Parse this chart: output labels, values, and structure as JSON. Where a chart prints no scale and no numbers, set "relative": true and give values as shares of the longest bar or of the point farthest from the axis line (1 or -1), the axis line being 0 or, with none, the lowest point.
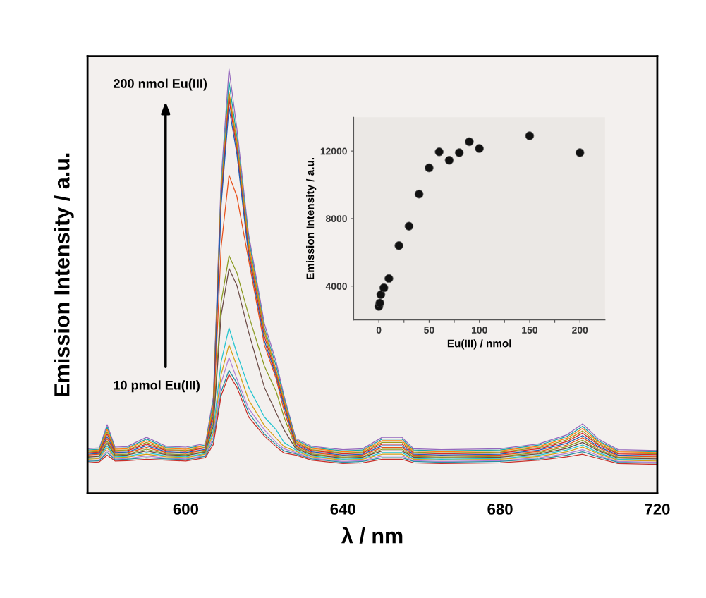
{
  "chart_data": [
    {
      "type": "line",
      "relative": true,
      "xlabel": "λ / nm",
      "ylabel": "Emission Intensity / a.u.",
      "xlim": [
        575,
        720
      ],
      "xticks": [
        600,
        640,
        680,
        720
      ],
      "tick_labels": "x",
      "marker": "none",
      "line_style": "solid",
      "grid": false,
      "legend": false,
      "annotations": [
        "200 nmol Eu(III)",
        "10 pmol Eu(III)"
      ],
      "x": [
        575,
        578,
        580,
        582,
        585,
        590,
        595,
        600,
        605,
        607,
        609,
        611,
        613,
        616,
        620,
        623,
        625,
        628,
        632,
        640,
        645,
        650,
        655,
        658,
        665,
        680,
        690,
        697,
        701,
        705,
        710,
        720
      ],
      "series": [
        {
          "color": "#9467bd",
          "values": [
            0.105,
            0.107,
            0.162,
            0.109,
            0.11,
            0.132,
            0.111,
            0.109,
            0.117,
            0.226,
            0.74,
            1.0,
            0.86,
            0.61,
            0.4,
            0.31,
            0.23,
            0.129,
            0.111,
            0.103,
            0.105,
            0.132,
            0.132,
            0.105,
            0.103,
            0.105,
            0.117,
            0.138,
            0.164,
            0.128,
            0.103,
            0.101
          ]
        },
        {
          "color": "#17a3a8",
          "values": [
            0.102,
            0.104,
            0.156,
            0.106,
            0.107,
            0.128,
            0.108,
            0.106,
            0.114,
            0.217,
            0.72,
            0.97,
            0.84,
            0.6,
            0.39,
            0.3,
            0.225,
            0.126,
            0.108,
            0.1,
            0.102,
            0.128,
            0.128,
            0.102,
            0.1,
            0.102,
            0.114,
            0.134,
            0.158,
            0.124,
            0.1,
            0.098
          ]
        },
        {
          "color": "#ff7f0e",
          "values": [
            0.1,
            0.102,
            0.151,
            0.104,
            0.105,
            0.124,
            0.106,
            0.104,
            0.112,
            0.209,
            0.71,
            0.945,
            0.83,
            0.59,
            0.385,
            0.29,
            0.22,
            0.123,
            0.106,
            0.098,
            0.1,
            0.124,
            0.124,
            0.1,
            0.098,
            0.1,
            0.111,
            0.13,
            0.153,
            0.121,
            0.098,
            0.096
          ]
        },
        {
          "color": "#9a9a1a",
          "values": [
            0.097,
            0.099,
            0.145,
            0.101,
            0.102,
            0.12,
            0.103,
            0.101,
            0.109,
            0.2,
            0.7,
            0.94,
            0.82,
            0.58,
            0.38,
            0.285,
            0.215,
            0.12,
            0.103,
            0.095,
            0.097,
            0.12,
            0.12,
            0.097,
            0.095,
            0.097,
            0.108,
            0.126,
            0.147,
            0.117,
            0.095,
            0.093
          ]
        },
        {
          "color": "#d62728",
          "values": [
            0.095,
            0.097,
            0.14,
            0.099,
            0.1,
            0.116,
            0.101,
            0.099,
            0.107,
            0.192,
            0.69,
            0.93,
            0.81,
            0.57,
            0.37,
            0.28,
            0.21,
            0.117,
            0.101,
            0.093,
            0.095,
            0.116,
            0.116,
            0.095,
            0.093,
            0.095,
            0.105,
            0.122,
            0.142,
            0.114,
            0.093,
            0.091
          ]
        },
        {
          "color": "#1f5fb4",
          "values": [
            0.092,
            0.094,
            0.134,
            0.096,
            0.097,
            0.112,
            0.098,
            0.096,
            0.104,
            0.183,
            0.68,
            0.91,
            0.8,
            0.56,
            0.36,
            0.275,
            0.205,
            0.114,
            0.098,
            0.09,
            0.092,
            0.112,
            0.112,
            0.092,
            0.09,
            0.092,
            0.102,
            0.118,
            0.136,
            0.11,
            0.09,
            0.088
          ]
        },
        {
          "color": "#e8501a",
          "values": [
            0.09,
            0.092,
            0.129,
            0.094,
            0.095,
            0.108,
            0.096,
            0.094,
            0.102,
            0.175,
            0.58,
            0.75,
            0.7,
            0.55,
            0.35,
            0.27,
            0.195,
            0.111,
            0.096,
            0.088,
            0.09,
            0.108,
            0.108,
            0.09,
            0.088,
            0.09,
            0.099,
            0.114,
            0.131,
            0.107,
            0.088,
            0.086
          ]
        },
        {
          "color": "#8a9a20",
          "values": [
            0.087,
            0.089,
            0.123,
            0.091,
            0.092,
            0.104,
            0.093,
            0.091,
            0.099,
            0.166,
            0.45,
            0.56,
            0.52,
            0.42,
            0.3,
            0.24,
            0.18,
            0.108,
            0.093,
            0.085,
            0.087,
            0.104,
            0.104,
            0.087,
            0.085,
            0.087,
            0.096,
            0.11,
            0.125,
            0.103,
            0.085,
            0.083
          ]
        },
        {
          "color": "#6b4a45",
          "values": [
            0.085,
            0.087,
            0.118,
            0.089,
            0.09,
            0.1,
            0.091,
            0.089,
            0.097,
            0.158,
            0.42,
            0.53,
            0.49,
            0.38,
            0.25,
            0.19,
            0.15,
            0.105,
            0.091,
            0.083,
            0.085,
            0.1,
            0.1,
            0.085,
            0.083,
            0.085,
            0.093,
            0.106,
            0.12,
            0.1,
            0.083,
            0.081
          ]
        },
        {
          "color": "#22c4cf",
          "values": [
            0.082,
            0.084,
            0.112,
            0.086,
            0.087,
            0.096,
            0.088,
            0.086,
            0.094,
            0.149,
            0.31,
            0.39,
            0.33,
            0.25,
            0.18,
            0.15,
            0.12,
            0.102,
            0.088,
            0.08,
            0.082,
            0.096,
            0.096,
            0.082,
            0.08,
            0.082,
            0.09,
            0.102,
            0.114,
            0.096,
            0.08,
            0.078
          ]
        },
        {
          "color": "#d4a017",
          "values": [
            0.08,
            0.082,
            0.107,
            0.084,
            0.085,
            0.092,
            0.086,
            0.084,
            0.092,
            0.141,
            0.28,
            0.35,
            0.3,
            0.22,
            0.16,
            0.13,
            0.11,
            0.099,
            0.086,
            0.078,
            0.08,
            0.092,
            0.092,
            0.08,
            0.078,
            0.08,
            0.087,
            0.098,
            0.109,
            0.093,
            0.078,
            0.076
          ]
        },
        {
          "color": "#b07fd6",
          "values": [
            0.077,
            0.079,
            0.101,
            0.081,
            0.082,
            0.088,
            0.083,
            0.081,
            0.089,
            0.132,
            0.26,
            0.32,
            0.27,
            0.2,
            0.15,
            0.12,
            0.105,
            0.096,
            0.083,
            0.075,
            0.077,
            0.088,
            0.088,
            0.077,
            0.075,
            0.077,
            0.084,
            0.094,
            0.103,
            0.089,
            0.075,
            0.073
          ]
        },
        {
          "color": "#2a8fa0",
          "values": [
            0.075,
            0.077,
            0.096,
            0.079,
            0.08,
            0.084,
            0.081,
            0.079,
            0.087,
            0.124,
            0.24,
            0.29,
            0.26,
            0.19,
            0.14,
            0.115,
            0.1,
            0.093,
            0.081,
            0.073,
            0.075,
            0.084,
            0.084,
            0.075,
            0.073,
            0.075,
            0.081,
            0.09,
            0.098,
            0.086,
            0.073,
            0.071
          ]
        },
        {
          "color": "#c8302a",
          "values": [
            0.072,
            0.074,
            0.09,
            0.076,
            0.077,
            0.08,
            0.078,
            0.076,
            0.084,
            0.115,
            0.23,
            0.28,
            0.25,
            0.18,
            0.135,
            0.11,
            0.095,
            0.09,
            0.078,
            0.07,
            0.072,
            0.08,
            0.08,
            0.072,
            0.07,
            0.072,
            0.078,
            0.086,
            0.092,
            0.082,
            0.07,
            0.068
          ]
        }
      ]
    },
    {
      "type": "scatter",
      "xlabel": "Eu(III) / nmol",
      "ylabel": "Emission Intensity / a.u.",
      "xlim": [
        -25,
        225
      ],
      "ylim": [
        2000,
        14000
      ],
      "xticks": [
        0,
        {
          "value": 25,
          "label": null
        },
        50,
        {
          "value": 75,
          "label": null
        },
        100,
        {
          "value": 125,
          "label": null
        },
        150,
        {
          "value": 175,
          "label": null
        },
        200
      ],
      "yticks": [
        4000,
        8000,
        12000
      ],
      "marker": "circle",
      "grid": false,
      "legend": false,
      "x": [
        0,
        1,
        2,
        5,
        10,
        20,
        30,
        40,
        50,
        60,
        70,
        80,
        90,
        100,
        150,
        200
      ],
      "series": [
        {
          "color": "#111111",
          "values": [
            2800,
            3000,
            3500,
            3900,
            4450,
            6400,
            7550,
            9450,
            11000,
            11950,
            11450,
            11900,
            12550,
            12150,
            12900,
            11900
          ]
        }
      ]
    }
  ]
}
